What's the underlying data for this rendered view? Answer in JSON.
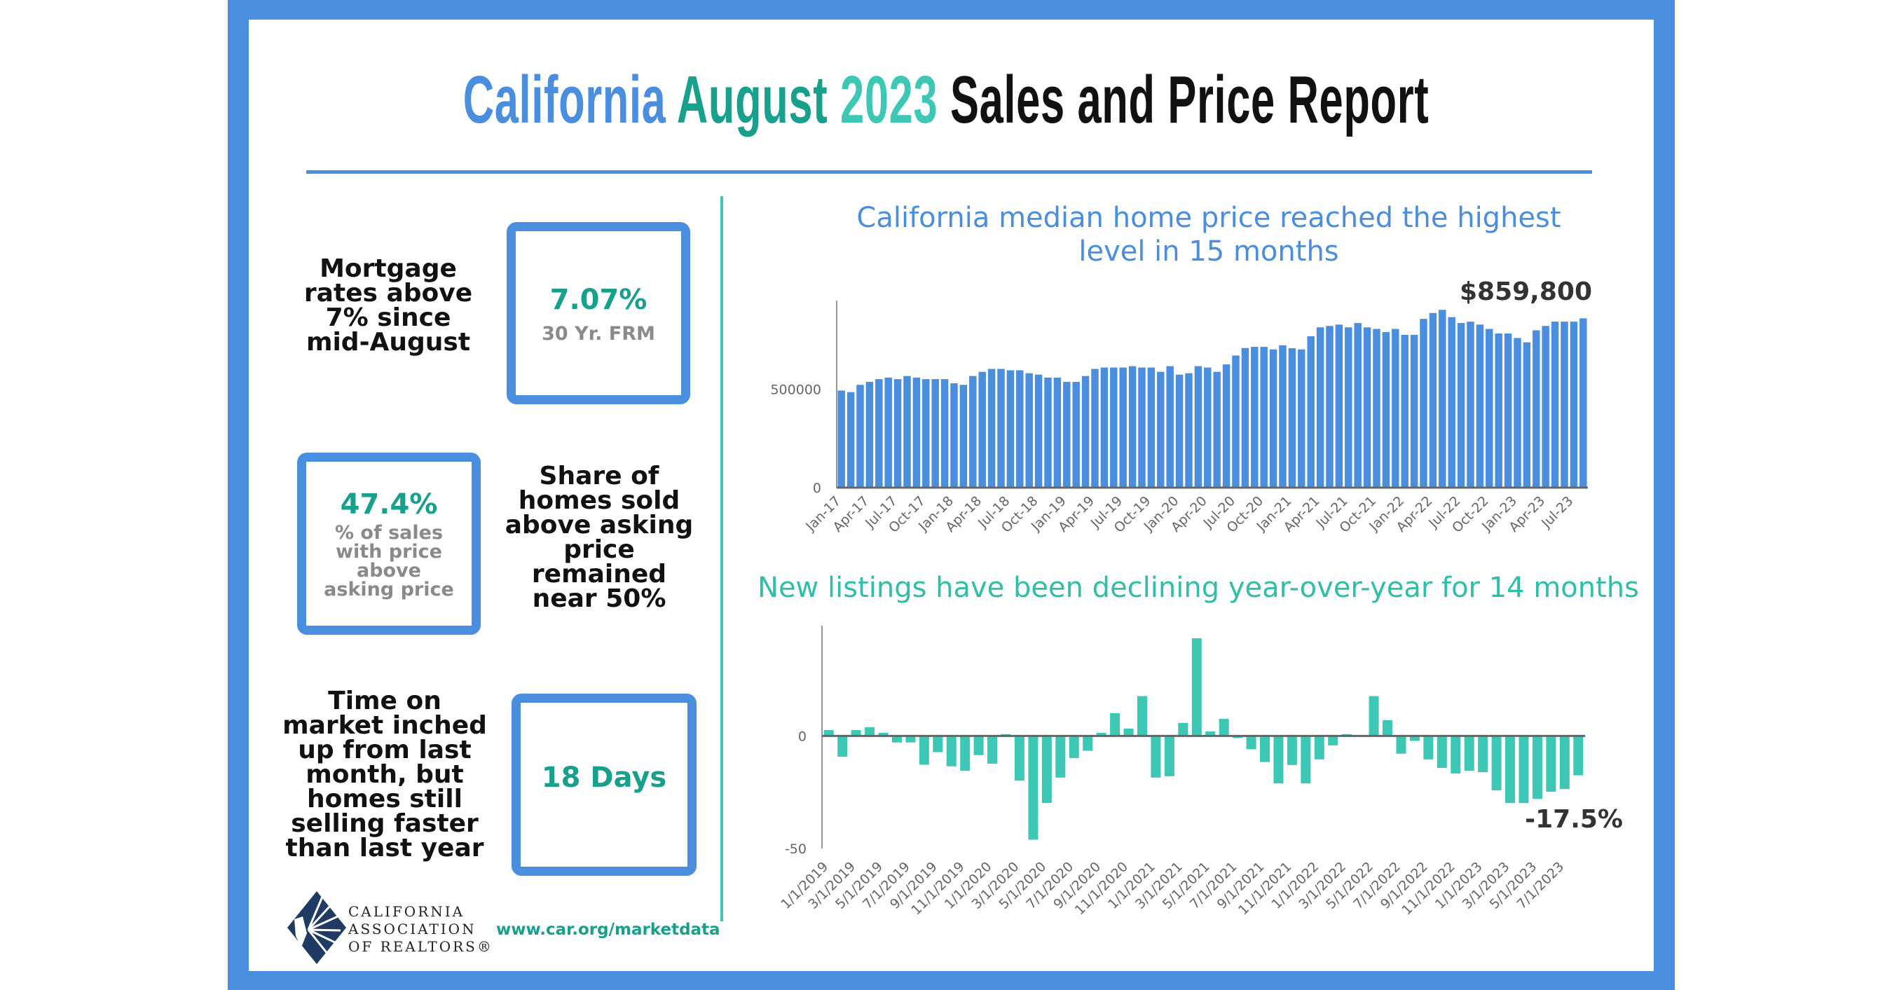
{
  "title": {
    "part1": "California",
    "part2": "August",
    "part3": "2023",
    "part4": "Sales and Price Report"
  },
  "colors": {
    "frame": "#4a8ee0",
    "accent_teal": "#17a08c",
    "bar_blue": "#4a8ee0",
    "bar_teal": "#3cc8b4"
  },
  "stats": {
    "mortgage": {
      "note": "Mortgage\nrates above\n7% since\nmid-August",
      "value": "7.07%",
      "label": "30 Yr. FRM"
    },
    "above_asking": {
      "value": "47.4%",
      "label": "% of sales with price above asking price",
      "note": "Share of\nhomes sold\nabove asking\nprice\nremained\nnear 50%"
    },
    "time_on_market": {
      "note": "Time on\nmarket inched\nup from last\nmonth, but\nhomes still\nselling faster\nthan last year",
      "value": "18 Days"
    }
  },
  "footer": {
    "logo_text": [
      "CALIFORNIA",
      "ASSOCIATION",
      "OF REALTORS®"
    ],
    "url": "www.car.org/marketdata"
  },
  "chart_data": [
    {
      "type": "bar",
      "title": "California median home price reached the highest level in 15 months",
      "annotation": "$859,800",
      "ylim": [
        0,
        950000
      ],
      "y_ticks": [
        "0",
        "500000"
      ],
      "y_tick_values": [
        0,
        500000
      ],
      "grid": false,
      "x_tick_every": 3,
      "categories": [
        "Jan-17",
        "Feb-17",
        "Mar-17",
        "Apr-17",
        "May-17",
        "Jun-17",
        "Jul-17",
        "Aug-17",
        "Sep-17",
        "Oct-17",
        "Nov-17",
        "Dec-17",
        "Jan-18",
        "Feb-18",
        "Mar-18",
        "Apr-18",
        "May-18",
        "Jun-18",
        "Jul-18",
        "Aug-18",
        "Sep-18",
        "Oct-18",
        "Nov-18",
        "Dec-18",
        "Jan-19",
        "Feb-19",
        "Mar-19",
        "Apr-19",
        "May-19",
        "Jun-19",
        "Jul-19",
        "Aug-19",
        "Sep-19",
        "Oct-19",
        "Nov-19",
        "Dec-19",
        "Jan-20",
        "Feb-20",
        "Mar-20",
        "Apr-20",
        "May-20",
        "Jun-20",
        "Jul-20",
        "Aug-20",
        "Sep-20",
        "Oct-20",
        "Nov-20",
        "Dec-20",
        "Jan-21",
        "Feb-21",
        "Mar-21",
        "Apr-21",
        "May-21",
        "Jun-21",
        "Jul-21",
        "Aug-21",
        "Sep-21",
        "Oct-21",
        "Nov-21",
        "Dec-21",
        "Jan-22",
        "Feb-22",
        "Mar-22",
        "Apr-22",
        "May-22",
        "Jun-22",
        "Jul-22",
        "Aug-22",
        "Sep-22",
        "Oct-22",
        "Nov-22",
        "Dec-22",
        "Jan-23",
        "Feb-23",
        "Mar-23",
        "Apr-23",
        "May-23",
        "Jun-23",
        "Jul-23",
        "Aug-23"
      ],
      "values": [
        493000,
        485000,
        522000,
        537000,
        551000,
        559000,
        551000,
        567000,
        559000,
        551000,
        551000,
        551000,
        530000,
        522000,
        567000,
        588000,
        603000,
        603000,
        596000,
        596000,
        581000,
        574000,
        559000,
        559000,
        537000,
        537000,
        567000,
        603000,
        610000,
        610000,
        610000,
        617000,
        610000,
        610000,
        588000,
        617000,
        574000,
        581000,
        617000,
        610000,
        588000,
        626000,
        671000,
        709000,
        715000,
        715000,
        702000,
        723000,
        708000,
        702000,
        769000,
        814000,
        821000,
        828000,
        814000,
        836000,
        814000,
        806000,
        790000,
        806000,
        776000,
        776000,
        857000,
        887000,
        903000,
        866000,
        836000,
        843000,
        828000,
        806000,
        783000,
        783000,
        760000,
        738000,
        799000,
        821000,
        843000,
        843000,
        843000,
        859800
      ]
    },
    {
      "type": "bar",
      "title": "New listings have been declining year-over-year for 14 months",
      "annotation": "-17.5%",
      "ylim": [
        -50,
        49
      ],
      "y_ticks": [
        "-50",
        "0"
      ],
      "y_tick_values": [
        -50,
        0
      ],
      "grid": false,
      "x_tick_every": 2,
      "categories": [
        "1/1/2019",
        "2/1/2019",
        "3/1/2019",
        "4/1/2019",
        "5/1/2019",
        "6/1/2019",
        "7/1/2019",
        "8/1/2019",
        "9/1/2019",
        "10/1/2019",
        "11/1/2019",
        "12/1/2019",
        "1/1/2020",
        "2/1/2020",
        "3/1/2020",
        "4/1/2020",
        "5/1/2020",
        "6/1/2020",
        "7/1/2020",
        "8/1/2020",
        "9/1/2020",
        "10/1/2020",
        "11/1/2020",
        "12/1/2020",
        "1/1/2021",
        "2/1/2021",
        "3/1/2021",
        "4/1/2021",
        "5/1/2021",
        "6/1/2021",
        "7/1/2021",
        "8/1/2021",
        "9/1/2021",
        "10/1/2021",
        "11/1/2021",
        "12/1/2021",
        "1/1/2022",
        "2/1/2022",
        "3/1/2022",
        "4/1/2022",
        "5/1/2022",
        "6/1/2022",
        "7/1/2022",
        "8/1/2022",
        "9/1/2022",
        "10/1/2022",
        "11/1/2022",
        "12/1/2022",
        "1/1/2023",
        "2/1/2023",
        "3/1/2023",
        "4/1/2023",
        "5/1/2023",
        "6/1/2023",
        "7/1/2023",
        "8/1/2023"
      ],
      "values": [
        2.6,
        -9.2,
        2.6,
        3.9,
        1.4,
        -2.9,
        -2.9,
        -12.8,
        -7.2,
        -13.5,
        -15.5,
        -8.5,
        -12.3,
        0.8,
        -19.8,
        -46.1,
        -29.8,
        -18.5,
        -9.8,
        -6.6,
        1.4,
        10.1,
        3.3,
        17.7,
        -18.5,
        -17.9,
        5.8,
        43.4,
        2.0,
        7.6,
        -0.9,
        -5.9,
        -11.6,
        -21.1,
        -12.9,
        -21.1,
        -10.4,
        -4.2,
        0.8,
        0.2,
        17.7,
        7.0,
        -7.9,
        -2.2,
        -10.4,
        -14.2,
        -16.7,
        -15.5,
        -16.1,
        -24.2,
        -29.8,
        -29.8,
        -28.0,
        -24.8,
        -23.6,
        -17.5
      ]
    }
  ]
}
